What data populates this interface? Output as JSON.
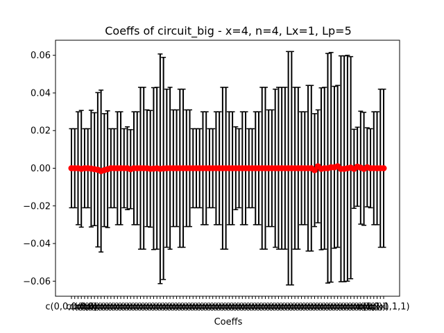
{
  "chart_data": {
    "type": "scatter",
    "title": "Coeffs of circuit_big - x=4, n=4, Lx=1, Lp=5",
    "xlabel": "Coeffs",
    "ylabel": "",
    "ylim": [
      -0.068,
      0.068
    ],
    "yticks": [
      -0.06,
      -0.04,
      -0.02,
      0.0,
      0.02,
      0.04,
      0.06
    ],
    "ytick_labels": [
      "−0.06",
      "−0.04",
      "−0.02",
      "0.00",
      "0.02",
      "0.04",
      "0.06"
    ],
    "grid": false,
    "legend": "none",
    "marker_color": "#ff0000",
    "errorbar_color": "#000000",
    "xtick_first_label": "c(0,0,0,0,0)",
    "xtick_last_label": "c(1,1,1,1,1)",
    "xtick_middle_label": "c(x)",
    "series": [
      {
        "values": [
          0.0,
          0.0,
          0.0,
          -0.0003,
          0.0,
          0.0,
          -0.0002,
          -0.0005,
          -0.0008,
          -0.0015,
          -0.001,
          -0.0005,
          0.0,
          0.0,
          0.0,
          0.0,
          0.0,
          0.0,
          -0.0005,
          0.0,
          0.0,
          0.0,
          0.0,
          0.0,
          -0.0003,
          -0.0002,
          0.0,
          -0.0003,
          -0.0001,
          0.0,
          0.0,
          0.0,
          0.0,
          0.0,
          0.0,
          0.0,
          0.0,
          0.0,
          0.0,
          0.0,
          0.0,
          0.0,
          0.0,
          0.0,
          0.0,
          0.0,
          0.0,
          0.0,
          0.0,
          0.0,
          0.0,
          0.0,
          0.0,
          0.0,
          0.0,
          0.0,
          0.0,
          0.0,
          0.0,
          0.0,
          0.0,
          0.0,
          0.0,
          0.0,
          0.0,
          0.0,
          0.0,
          0.0,
          0.0,
          0.0,
          0.0,
          0.0,
          0.0,
          0.0,
          -0.001,
          0.001,
          -0.0003,
          0.0,
          0.0,
          0.0005,
          0.0005,
          0.001,
          -0.0003,
          -0.0003,
          0.0,
          0.0003,
          -0.0003,
          0.0008,
          0.0003,
          -0.0003,
          0.0005,
          0.0,
          0.0,
          0.0,
          0.0,
          0.0
        ],
        "errors": [
          0.021,
          0.021,
          0.03,
          0.031,
          0.021,
          0.021,
          0.031,
          0.03,
          0.041,
          0.043,
          0.03,
          0.031,
          0.021,
          0.021,
          0.03,
          0.03,
          0.021,
          0.022,
          0.021,
          0.03,
          0.03,
          0.043,
          0.043,
          0.031,
          0.031,
          0.043,
          0.043,
          0.061,
          0.059,
          0.042,
          0.043,
          0.031,
          0.031,
          0.042,
          0.042,
          0.031,
          0.031,
          0.021,
          0.021,
          0.021,
          0.03,
          0.03,
          0.021,
          0.021,
          0.03,
          0.03,
          0.043,
          0.043,
          0.03,
          0.03,
          0.022,
          0.021,
          0.03,
          0.03,
          0.021,
          0.021,
          0.03,
          0.03,
          0.043,
          0.043,
          0.031,
          0.031,
          0.042,
          0.043,
          0.043,
          0.043,
          0.062,
          0.062,
          0.043,
          0.043,
          0.03,
          0.03,
          0.044,
          0.044,
          0.03,
          0.03,
          0.043,
          0.043,
          0.061,
          0.061,
          0.043,
          0.043,
          0.06,
          0.06,
          0.06,
          0.059,
          0.021,
          0.021,
          0.03,
          0.03,
          0.021,
          0.021,
          0.03,
          0.03,
          0.042,
          0.042
        ]
      }
    ]
  }
}
